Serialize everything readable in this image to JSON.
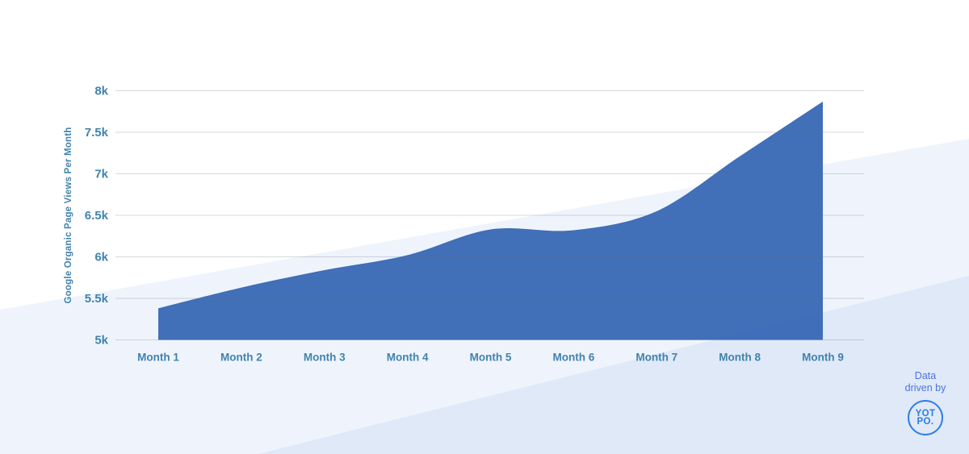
{
  "chart_data": {
    "type": "area",
    "title": "",
    "xlabel": "",
    "ylabel": "Google Organic Page Views Per Month",
    "categories": [
      "Month 1",
      "Month 2",
      "Month 3",
      "Month 4",
      "Month 5",
      "Month 6",
      "Month 7",
      "Month 8",
      "Month 9"
    ],
    "series": [
      {
        "name": "Google Organic Page Views Per Month",
        "values": [
          5380,
          5630,
          5840,
          6020,
          6330,
          6320,
          6550,
          7210,
          7870
        ]
      }
    ],
    "ylim": [
      5000,
      8000
    ],
    "yticks": [
      {
        "value": 5000,
        "label": "5k"
      },
      {
        "value": 5500,
        "label": "5.5k"
      },
      {
        "value": 6000,
        "label": "6k"
      },
      {
        "value": 6500,
        "label": "6.5k"
      },
      {
        "value": 7000,
        "label": "7k"
      },
      {
        "value": 7500,
        "label": "7.5k"
      },
      {
        "value": 8000,
        "label": "8k"
      }
    ],
    "grid": "horizontal",
    "legend": "none"
  },
  "colors": {
    "area_fill": "#3767b4",
    "gridline": "#6b7280",
    "axis_text": "#4183ad",
    "band_light": "#eff4fc",
    "band_dark": "#dfe9f8",
    "badge_text": "#4d73e2",
    "logo_blue": "#2d7ce6"
  },
  "badge": {
    "line1": "Data",
    "line2": "driven by",
    "logo_line1": "YOT",
    "logo_line2": "PO."
  }
}
